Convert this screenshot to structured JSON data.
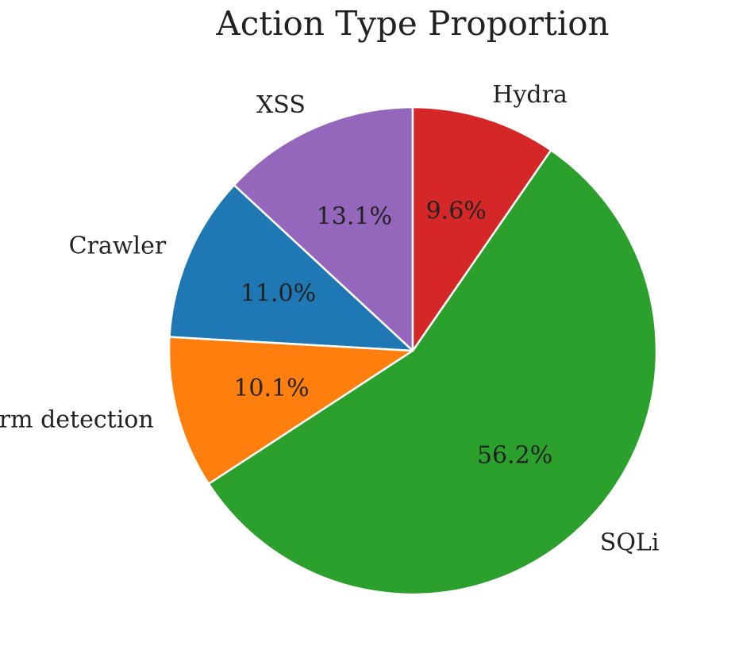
{
  "chart_data": {
    "type": "pie",
    "title": "Action Type Proportion",
    "labels": [
      "XSS",
      "Crawler",
      "Form detection",
      "SQLi",
      "Hydra"
    ],
    "values": [
      13.1,
      11.0,
      10.1,
      56.2,
      9.6
    ],
    "value_labels": [
      "13.1%",
      "11.0%",
      "10.1%",
      "56.2%",
      "9.6%"
    ],
    "colors": [
      "#9467bd",
      "#1f77b4",
      "#ff7f0e",
      "#2ca02c",
      "#d62728"
    ],
    "start_angle_deg": 90,
    "direction": "counterclockwise",
    "legend": "none"
  }
}
